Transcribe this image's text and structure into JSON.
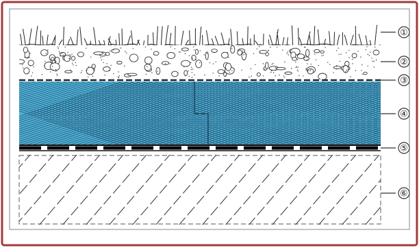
{
  "diagram": {
    "layers": [
      {
        "id": "1",
        "marker": "①",
        "component": "vegetation"
      },
      {
        "id": "2",
        "marker": "②",
        "component": "substrate"
      },
      {
        "id": "3",
        "marker": "③",
        "component": "filter-membrane"
      },
      {
        "id": "4",
        "marker": "④",
        "component": "insulation-board"
      },
      {
        "id": "5",
        "marker": "⑤",
        "component": "waterproofing-membrane"
      },
      {
        "id": "6",
        "marker": "⑥",
        "component": "structural-deck"
      }
    ],
    "colors": {
      "frame": "#a23b3b",
      "insulation": "#4fb0d4",
      "insulation_lines": "#1d4a6a",
      "line": "#333333"
    }
  }
}
